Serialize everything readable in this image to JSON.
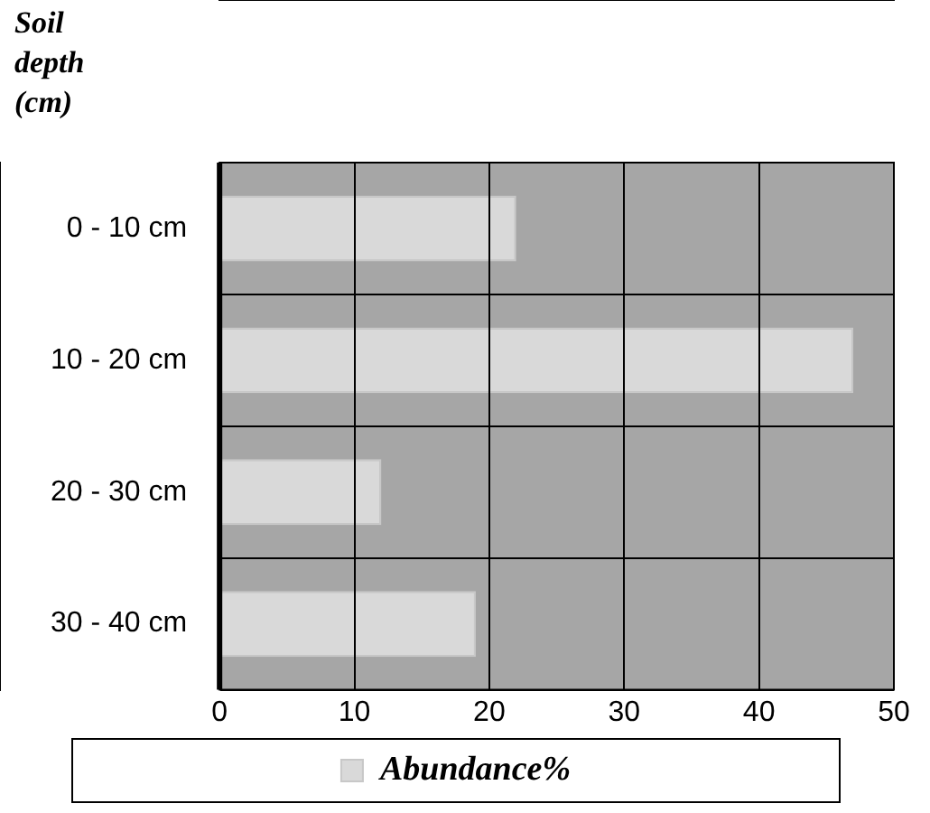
{
  "chart_data": {
    "type": "bar",
    "orientation": "horizontal",
    "ylabel": "Soil depth (cm)",
    "categories": [
      "0 - 10 cm",
      "10 - 20 cm",
      "20 - 30 cm",
      "30 - 40 cm"
    ],
    "series": [
      {
        "name": "Abundance%",
        "color": "#d9d9d9",
        "values": [
          22,
          47,
          12,
          19
        ]
      }
    ],
    "xlim": [
      0,
      50
    ],
    "xticks": [
      0,
      10,
      20,
      30,
      40,
      50
    ],
    "grid": true,
    "legend": "bottom"
  }
}
